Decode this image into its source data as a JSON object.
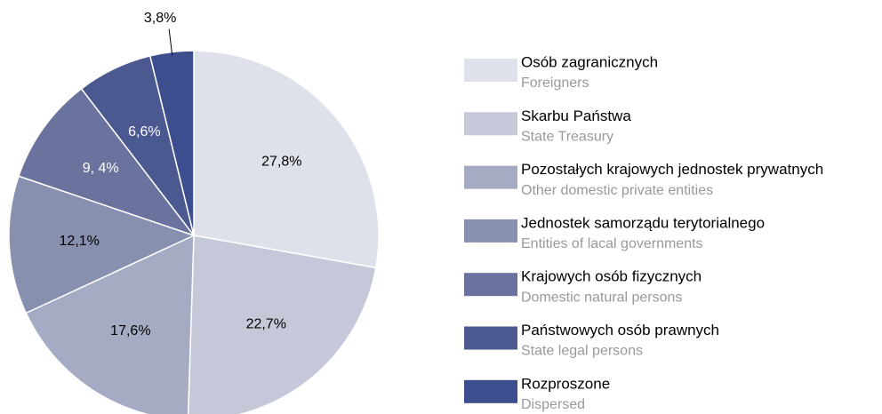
{
  "chart_data": {
    "type": "pie",
    "categories": [
      "Osób zagranicznych",
      "Skarbu Państwa",
      "Pozostałych krajowych jednostek prywatnych",
      "Jednostek samorządu terytorialnego",
      "Krajowych osób fizycznych",
      "Państwowych osób prawnych",
      "Rozproszone"
    ],
    "category_translations": [
      "Foreigners",
      "State Treasury",
      "Other domestic private entities",
      "Entities of lacal governments",
      "Domestic natural persons",
      "State legal persons",
      "Dispersed"
    ],
    "values": [
      27.8,
      22.7,
      17.6,
      12.1,
      9.4,
      6.6,
      3.8
    ],
    "value_labels": [
      "27,8%",
      "22,7%",
      "17,6%",
      "12,1%",
      "9, 4%",
      "6,6%",
      "3,8%"
    ],
    "colors": [
      "#dfe1ea",
      "#c5c8d8",
      "#a6abc4",
      "#8890af",
      "#6a739d",
      "#4c5890",
      "#3d4e8f"
    ],
    "legend": "right"
  }
}
